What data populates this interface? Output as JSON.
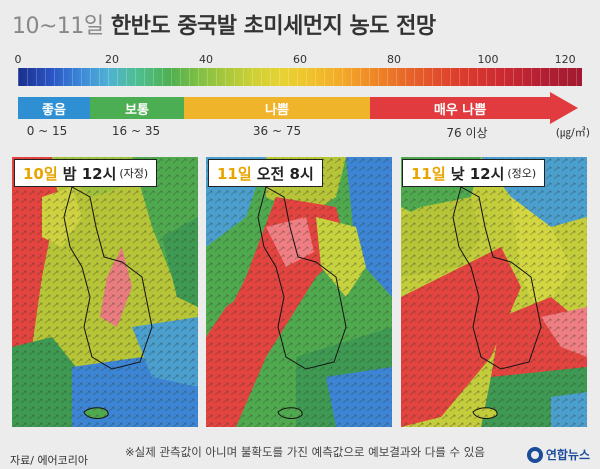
{
  "title": {
    "date": "10~11일",
    "text": "한반도 중국발 초미세먼지 농도 전망"
  },
  "scale": {
    "ticks": [
      "0",
      "20",
      "40",
      "60",
      "80",
      "100",
      "120"
    ],
    "min": 0,
    "max": 120
  },
  "categories": [
    {
      "label": "좋음",
      "range": "0 ~ 15",
      "color": "#2e8fd2"
    },
    {
      "label": "보통",
      "range": "16 ~ 35",
      "color": "#4cae52"
    },
    {
      "label": "나쁨",
      "range": "36 ~ 75",
      "color": "#f0b42a"
    },
    {
      "label": "매우 나쁨",
      "range": "76 이상",
      "color": "#e23b3f"
    }
  ],
  "unit": "(㎍/㎥)",
  "panels": [
    {
      "day": "10일",
      "time": "밤 12시",
      "note": "(자정)"
    },
    {
      "day": "11일",
      "time": "오전 8시",
      "note": ""
    },
    {
      "day": "11일",
      "time": "낮 12시",
      "note": "(정오)"
    }
  ],
  "footnote": "※실제 관측값이 아니며 불확도를 가진 예측값으로 예보결과와 다를 수 있음",
  "source": "자료/ 에어코리아",
  "logo": "연합뉴스"
}
